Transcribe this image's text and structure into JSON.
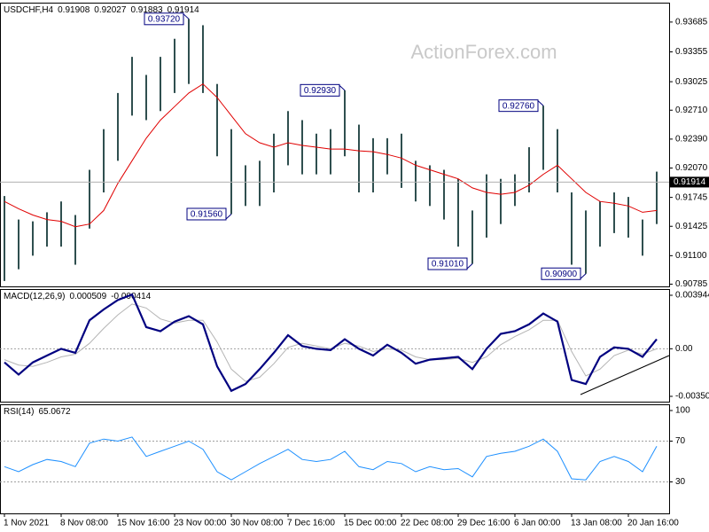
{
  "chart_data": [
    {
      "type": "range",
      "title": "USDCHF,H4",
      "header_values": [
        0.91908,
        0.92027,
        0.91883,
        0.91914
      ],
      "watermark": "ActionForex.com",
      "color": "#2f4f4f",
      "categories": [
        "1 Nov 2021",
        null,
        null,
        null,
        "8 Nov 08:00",
        null,
        null,
        null,
        "15 Nov 16:00",
        null,
        null,
        null,
        "23 Nov 00:00",
        null,
        null,
        null,
        "30 Nov 08:00",
        null,
        null,
        null,
        "7 Dec 16:00",
        null,
        null,
        null,
        "15 Dec 00:00",
        null,
        null,
        null,
        "22 Dec 08:00",
        null,
        null,
        null,
        "29 Dec 16:00",
        null,
        null,
        null,
        "6 Jan 00:00",
        null,
        null,
        null,
        "13 Jan 08:00",
        null,
        null,
        null,
        "20 Jan 16:00",
        null,
        null
      ],
      "high": [
        0.9176,
        0.915,
        0.9148,
        0.9158,
        0.917,
        0.9155,
        0.9205,
        0.925,
        0.929,
        0.933,
        0.931,
        0.933,
        0.935,
        0.9372,
        0.9365,
        0.93,
        0.925,
        0.921,
        0.9215,
        0.9245,
        0.927,
        0.926,
        0.9245,
        0.925,
        0.9293,
        0.9255,
        0.924,
        0.924,
        0.9245,
        0.9215,
        0.921,
        0.9205,
        0.9195,
        0.916,
        0.92,
        0.9195,
        0.92,
        0.923,
        0.9276,
        0.925,
        0.918,
        0.916,
        0.917,
        0.918,
        0.9175,
        0.915,
        0.9203
      ],
      "low": [
        0.9082,
        0.9095,
        0.911,
        0.912,
        0.912,
        0.91,
        0.914,
        0.918,
        0.9215,
        0.9265,
        0.926,
        0.927,
        0.929,
        0.93,
        0.929,
        0.922,
        0.9156,
        0.9165,
        0.9165,
        0.918,
        0.921,
        0.92,
        0.92,
        0.92,
        0.922,
        0.918,
        0.918,
        0.92,
        0.9185,
        0.917,
        0.9165,
        0.915,
        0.912,
        0.9101,
        0.913,
        0.9145,
        0.9165,
        0.918,
        0.9205,
        0.918,
        0.91,
        0.909,
        0.912,
        0.9135,
        0.913,
        0.911,
        0.9145
      ],
      "ma": {
        "color": "#e00000",
        "values": [
          0.917,
          0.9162,
          0.9155,
          0.915,
          0.9148,
          0.9142,
          0.9145,
          0.916,
          0.919,
          0.9215,
          0.924,
          0.926,
          0.9275,
          0.929,
          0.93,
          0.9285,
          0.9265,
          0.9245,
          0.9235,
          0.923,
          0.9235,
          0.9232,
          0.923,
          0.9228,
          0.9228,
          0.9226,
          0.9225,
          0.9222,
          0.9218,
          0.921,
          0.9205,
          0.92,
          0.9195,
          0.9185,
          0.918,
          0.9178,
          0.918,
          0.9188,
          0.92,
          0.921,
          0.9195,
          0.918,
          0.917,
          0.9168,
          0.9165,
          0.9158,
          0.916
        ]
      },
      "annotations": [
        {
          "value": 0.9372,
          "label": "0.93720"
        },
        {
          "value": 0.9156,
          "label": "0.91560"
        },
        {
          "value": 0.9293,
          "label": "0.92930"
        },
        {
          "value": 0.9101,
          "label": "0.91010"
        },
        {
          "value": 0.9276,
          "label": "0.92760"
        },
        {
          "value": 0.909,
          "label": "0.90900"
        }
      ],
      "ylim": [
        0.9077,
        0.9388
      ],
      "yticks": [
        0.93685,
        0.93355,
        0.93025,
        {
          "value": 0.9271,
          "label": "0.92710"
        },
        {
          "value": 0.9239,
          "label": "0.92390"
        },
        {
          "value": 0.9207,
          "label": "0.92070"
        },
        0.91745,
        0.91425,
        {
          "value": 0.911,
          "label": "0.91100"
        },
        0.90785
      ]
    },
    {
      "type": "line",
      "title": "MACD(12,26,9)",
      "header_values": [
        0.000509,
        -0.000414
      ],
      "levels": true,
      "series": [
        {
          "color": "#000080",
          "values": [
            -0.001,
            -0.0019,
            -0.001,
            -0.0005,
            0,
            -0.0003,
            0.0021,
            0.0029,
            0.0036,
            0.004,
            0.0016,
            0.0013,
            0.002,
            0.0024,
            0.0018,
            -0.0013,
            -0.0031,
            -0.0026,
            -0.0015,
            -0.0003,
            0.001,
            0.0002,
            0,
            -0.0001,
            0.0007,
            0,
            -0.0005,
            0.0003,
            -0.0003,
            -0.0011,
            -0.0008,
            -0.0007,
            -0.0006,
            -0.0015,
            0,
            0.0011,
            0.0013,
            0.0018,
            0.0026,
            0.002,
            -0.0023,
            -0.0026,
            -0.0006,
            0.0001,
            0,
            -0.0006,
            0.0007
          ]
        },
        {
          "color": "#b4b4b4",
          "values": [
            -0.0008,
            -0.0012,
            -0.0013,
            -0.001,
            -0.0006,
            -0.0004,
            0.0004,
            0.0015,
            0.0025,
            0.0033,
            0.003,
            0.0022,
            0.0019,
            0.0021,
            0.0021,
            0.0005,
            -0.0015,
            -0.0024,
            -0.0021,
            -0.0011,
            0.0001,
            0.0004,
            0.0002,
            0,
            0.0004,
            0.0002,
            -0.0002,
            0,
            -0.0001,
            -0.0006,
            -0.0008,
            -0.0008,
            -0.0007,
            -0.001,
            -0.0006,
            0.0003,
            0.0009,
            0.0014,
            0.0021,
            0.0021,
            -0.0002,
            -0.002,
            -0.0015,
            -0.0005,
            -0.0001,
            -0.0004,
            0
          ]
        }
      ],
      "ylim": [
        -0.003506,
        0.003944
      ],
      "yticks": [
        0.003944,
        {
          "value": 0,
          "label": "0.00"
        },
        -0.003506
      ]
    },
    {
      "type": "line",
      "title": "RSI(14)",
      "header_values": [
        65.0672
      ],
      "levels": true,
      "series": [
        {
          "color": "#1e90ff",
          "values": [
            45,
            40,
            47,
            52,
            50,
            45,
            68,
            72,
            70,
            74,
            55,
            60,
            65,
            70,
            62,
            40,
            32,
            40,
            48,
            55,
            62,
            52,
            50,
            52,
            60,
            45,
            42,
            50,
            48,
            40,
            45,
            42,
            43,
            35,
            55,
            58,
            60,
            65,
            72,
            60,
            33,
            32,
            50,
            55,
            50,
            40,
            65
          ]
        }
      ],
      "ylim": [
        0,
        100
      ],
      "yticks": [
        100,
        70,
        30
      ]
    }
  ]
}
